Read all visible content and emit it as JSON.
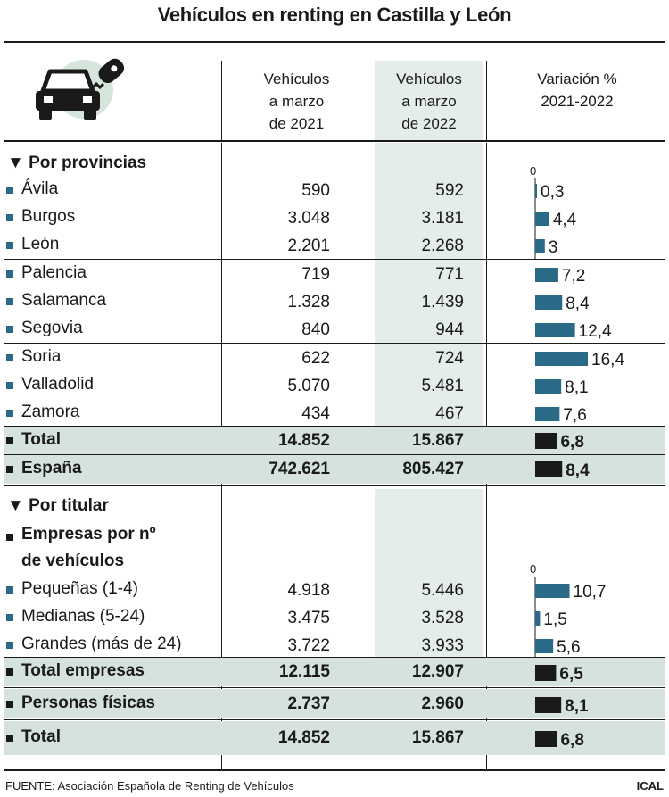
{
  "title": "Vehículos en renting en Castilla y León",
  "headers": {
    "col1": [
      "Vehículos",
      "a marzo",
      "de 2021"
    ],
    "col2": [
      "Vehículos",
      "a marzo",
      "de 2022"
    ],
    "col3": [
      "Variación %",
      "2021-2022"
    ]
  },
  "sections": {
    "provincias": "Por provincias",
    "titular": "Por titular",
    "empresas_line1": "Empresas por nº",
    "empresas_line2": "de vehículos"
  },
  "zero_label": "0",
  "colors": {
    "teal": "#2a6a86",
    "dark": "#1a1a1a",
    "highlight": "#d6e3dc",
    "column": "#e5ede8"
  },
  "chart_data": {
    "type": "table",
    "columns": [
      "Vehículos a marzo de 2021",
      "Vehículos a marzo de 2022",
      "Variación % 2021-2022"
    ],
    "rows": [
      {
        "label": "Ávila",
        "v2021": "590",
        "v2022": "592",
        "var": 0.3,
        "var_label": "0,3",
        "kind": "province"
      },
      {
        "label": "Burgos",
        "v2021": "3.048",
        "v2022": "3.181",
        "var": 4.4,
        "var_label": "4,4",
        "kind": "province"
      },
      {
        "label": "León",
        "v2021": "2.201",
        "v2022": "2.268",
        "var": 3,
        "var_label": "3",
        "kind": "province"
      },
      {
        "label": "Palencia",
        "v2021": "719",
        "v2022": "771",
        "var": 7.2,
        "var_label": "7,2",
        "kind": "province"
      },
      {
        "label": "Salamanca",
        "v2021": "1.328",
        "v2022": "1.439",
        "var": 8.4,
        "var_label": "8,4",
        "kind": "province"
      },
      {
        "label": "Segovia",
        "v2021": "840",
        "v2022": "944",
        "var": 12.4,
        "var_label": "12,4",
        "kind": "province"
      },
      {
        "label": "Soria",
        "v2021": "622",
        "v2022": "724",
        "var": 16.4,
        "var_label": "16,4",
        "kind": "province"
      },
      {
        "label": "Valladolid",
        "v2021": "5.070",
        "v2022": "5.481",
        "var": 8.1,
        "var_label": "8,1",
        "kind": "province"
      },
      {
        "label": "Zamora",
        "v2021": "434",
        "v2022": "467",
        "var": 7.6,
        "var_label": "7,6",
        "kind": "province"
      },
      {
        "label": "Total",
        "v2021": "14.852",
        "v2022": "15.867",
        "var": 6.8,
        "var_label": "6,8",
        "kind": "total"
      },
      {
        "label": "España",
        "v2021": "742.621",
        "v2022": "805.427",
        "var": 8.4,
        "var_label": "8,4",
        "kind": "total"
      },
      {
        "label": "Pequeñas (1-4)",
        "v2021": "4.918",
        "v2022": "5.446",
        "var": 10.7,
        "var_label": "10,7",
        "kind": "titular"
      },
      {
        "label": "Medianas (5-24)",
        "v2021": "3.475",
        "v2022": "3.528",
        "var": 1.5,
        "var_label": "1,5",
        "kind": "titular"
      },
      {
        "label": "Grandes (más de 24)",
        "v2021": "3.722",
        "v2022": "3.933",
        "var": 5.6,
        "var_label": "5,6",
        "kind": "titular"
      },
      {
        "label": "Total empresas",
        "v2021": "12.115",
        "v2022": "12.907",
        "var": 6.5,
        "var_label": "6,5",
        "kind": "total"
      },
      {
        "label": "Personas físicas",
        "v2021": "2.737",
        "v2022": "2.960",
        "var": 8.1,
        "var_label": "8,1",
        "kind": "total"
      },
      {
        "label": "Total",
        "v2021": "14.852",
        "v2022": "15.867",
        "var": 6.8,
        "var_label": "6,8",
        "kind": "total"
      }
    ]
  },
  "footer": {
    "source": "FUENTE: Asociación Española de Renting de Vehículos",
    "brand": "ICAL"
  }
}
